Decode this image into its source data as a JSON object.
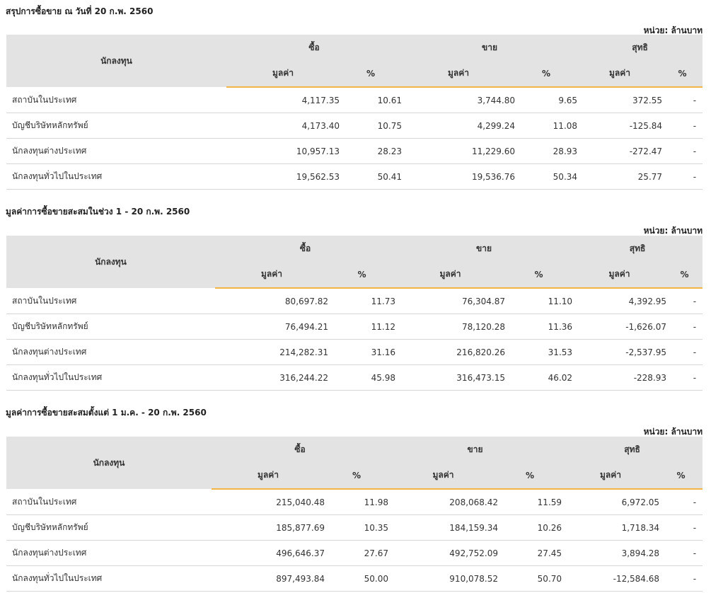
{
  "sections": [
    {
      "title": "สรุปการซื้อขาย ณ วันที่ 20 ก.พ. 2560",
      "unit": "หน่วย: ล้านบาท",
      "headers": {
        "investor": "นักลงทุน",
        "buy": "ซื้อ",
        "sell": "ขาย",
        "net": "สุทธิ",
        "value": "มูลค่า",
        "pct": "%"
      },
      "rows": [
        {
          "name": "สถาบันในประเทศ",
          "buy_value": "4,117.35",
          "buy_pct": "10.61",
          "sell_value": "3,744.80",
          "sell_pct": "9.65",
          "net_value": "372.55",
          "net_pct": "-",
          "net_sign": "pos"
        },
        {
          "name": "บัญชีบริษัทหลักทรัพย์",
          "buy_value": "4,173.40",
          "buy_pct": "10.75",
          "sell_value": "4,299.24",
          "sell_pct": "11.08",
          "net_value": "-125.84",
          "net_pct": "-",
          "net_sign": "neg"
        },
        {
          "name": "นักลงทุนต่างประเทศ",
          "buy_value": "10,957.13",
          "buy_pct": "28.23",
          "sell_value": "11,229.60",
          "sell_pct": "28.93",
          "net_value": "-272.47",
          "net_pct": "-",
          "net_sign": "neg"
        },
        {
          "name": "นักลงทุนทั่วไปในประเทศ",
          "buy_value": "19,562.53",
          "buy_pct": "50.41",
          "sell_value": "19,536.76",
          "sell_pct": "50.34",
          "net_value": "25.77",
          "net_pct": "-",
          "net_sign": "pos"
        }
      ]
    },
    {
      "title": "มูลค่าการซื้อขายสะสมในช่วง 1 - 20 ก.พ. 2560",
      "unit": "หน่วย: ล้านบาท",
      "headers": {
        "investor": "นักลงทุน",
        "buy": "ซื้อ",
        "sell": "ขาย",
        "net": "สุทธิ",
        "value": "มูลค่า",
        "pct": "%"
      },
      "rows": [
        {
          "name": "สถาบันในประเทศ",
          "buy_value": "80,697.82",
          "buy_pct": "11.73",
          "sell_value": "76,304.87",
          "sell_pct": "11.10",
          "net_value": "4,392.95",
          "net_pct": "-",
          "net_sign": "pos"
        },
        {
          "name": "บัญชีบริษัทหลักทรัพย์",
          "buy_value": "76,494.21",
          "buy_pct": "11.12",
          "sell_value": "78,120.28",
          "sell_pct": "11.36",
          "net_value": "-1,626.07",
          "net_pct": "-",
          "net_sign": "neg"
        },
        {
          "name": "นักลงทุนต่างประเทศ",
          "buy_value": "214,282.31",
          "buy_pct": "31.16",
          "sell_value": "216,820.26",
          "sell_pct": "31.53",
          "net_value": "-2,537.95",
          "net_pct": "-",
          "net_sign": "neg"
        },
        {
          "name": "นักลงทุนทั่วไปในประเทศ",
          "buy_value": "316,244.22",
          "buy_pct": "45.98",
          "sell_value": "316,473.15",
          "sell_pct": "46.02",
          "net_value": "-228.93",
          "net_pct": "-",
          "net_sign": "neg"
        }
      ]
    },
    {
      "title": "มูลค่าการซื้อขายสะสมตั้งแต่ 1 ม.ค. - 20 ก.พ. 2560",
      "unit": "หน่วย: ล้านบาท",
      "headers": {
        "investor": "นักลงทุน",
        "buy": "ซื้อ",
        "sell": "ขาย",
        "net": "สุทธิ",
        "value": "มูลค่า",
        "pct": "%"
      },
      "rows": [
        {
          "name": "สถาบันในประเทศ",
          "buy_value": "215,040.48",
          "buy_pct": "11.98",
          "sell_value": "208,068.42",
          "sell_pct": "11.59",
          "net_value": "6,972.05",
          "net_pct": "-",
          "net_sign": "pos"
        },
        {
          "name": "บัญชีบริษัทหลักทรัพย์",
          "buy_value": "185,877.69",
          "buy_pct": "10.35",
          "sell_value": "184,159.34",
          "sell_pct": "10.26",
          "net_value": "1,718.34",
          "net_pct": "-",
          "net_sign": "pos"
        },
        {
          "name": "นักลงทุนต่างประเทศ",
          "buy_value": "496,646.37",
          "buy_pct": "27.67",
          "sell_value": "492,752.09",
          "sell_pct": "27.45",
          "net_value": "3,894.28",
          "net_pct": "-",
          "net_sign": "pos"
        },
        {
          "name": "นักลงทุนทั่วไปในประเทศ",
          "buy_value": "897,493.84",
          "buy_pct": "50.00",
          "sell_value": "910,078.52",
          "sell_pct": "50.70",
          "net_value": "-12,584.68",
          "net_pct": "-",
          "net_sign": "neg"
        }
      ]
    }
  ],
  "colors": {
    "positive": "#2e8b2e",
    "negative": "#e02020",
    "header_bg": "#e3e3e3",
    "accent_underline": "#f2b541"
  }
}
